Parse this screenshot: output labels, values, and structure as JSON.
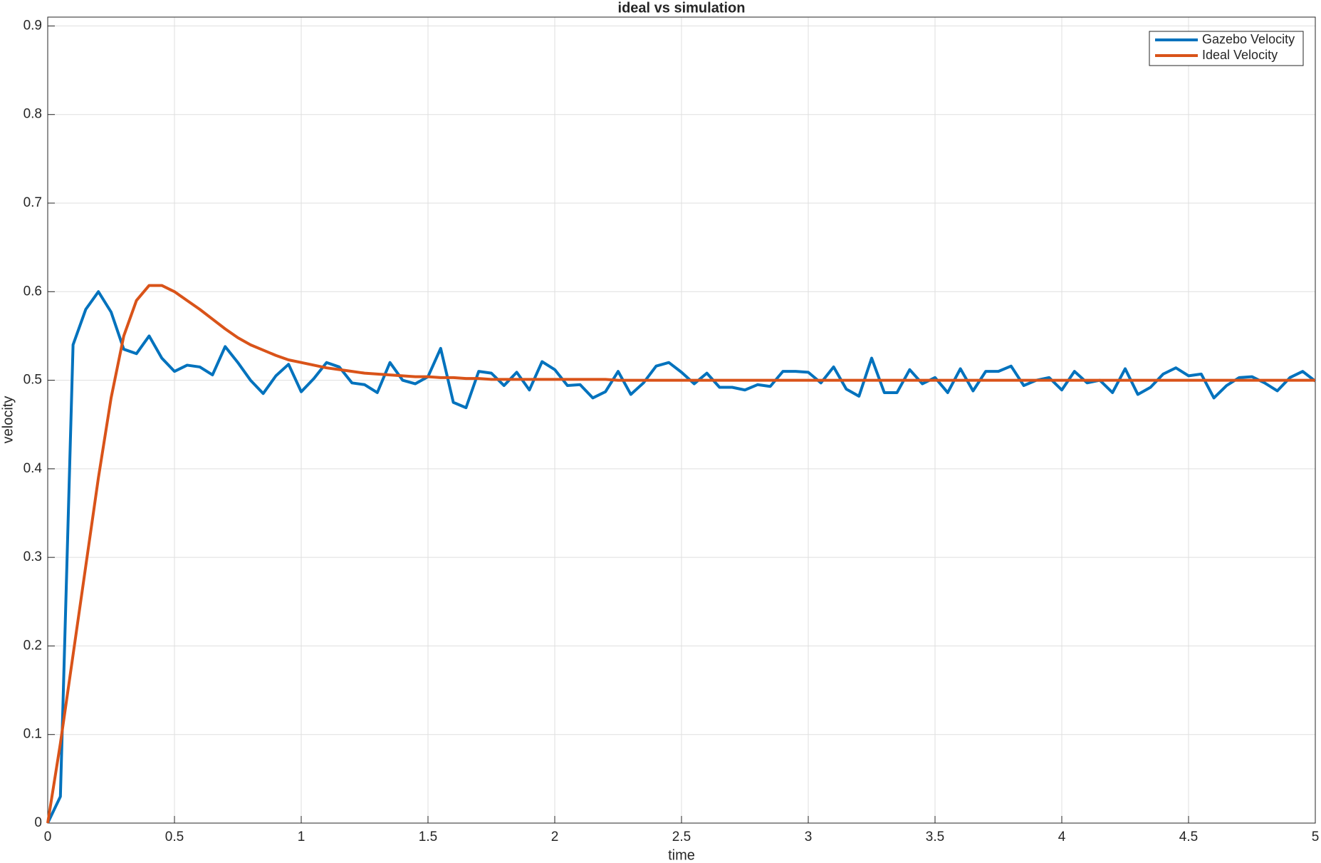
{
  "chart_data": {
    "type": "line",
    "title": "ideal vs simulation",
    "x_label": "time",
    "y_label": "velocity",
    "x": [
      0,
      0.05,
      0.1,
      0.15,
      0.2,
      0.25,
      0.3,
      0.35,
      0.4,
      0.45,
      0.5,
      0.55,
      0.6,
      0.65,
      0.7,
      0.75,
      0.8,
      0.85,
      0.9,
      0.95,
      1,
      1.05,
      1.1,
      1.15,
      1.2,
      1.25,
      1.3,
      1.35,
      1.4,
      1.45,
      1.5,
      1.55,
      1.6,
      1.65,
      1.7,
      1.75,
      1.8,
      1.85,
      1.9,
      1.95,
      2,
      2.05,
      2.1,
      2.15,
      2.2,
      2.25,
      2.3,
      2.35,
      2.4,
      2.45,
      2.5,
      2.55,
      2.6,
      2.65,
      2.7,
      2.75,
      2.8,
      2.85,
      2.9,
      2.95,
      3,
      3.05,
      3.1,
      3.15,
      3.2,
      3.25,
      3.3,
      3.35,
      3.4,
      3.45,
      3.5,
      3.55,
      3.6,
      3.65,
      3.7,
      3.75,
      3.8,
      3.85,
      3.9,
      3.95,
      4,
      4.05,
      4.1,
      4.15,
      4.2,
      4.25,
      4.3,
      4.35,
      4.4,
      4.45,
      4.5,
      4.55,
      4.6,
      4.65,
      4.7,
      4.75,
      4.8,
      4.85,
      4.9,
      4.95,
      5
    ],
    "series": [
      {
        "name": "Gazebo Velocity",
        "color": "#0072bd",
        "values": [
          0,
          0.03,
          0.54,
          0.58,
          0.6,
          0.577,
          0.535,
          0.53,
          0.55,
          0.525,
          0.51,
          0.517,
          0.515,
          0.506,
          0.538,
          0.52,
          0.5,
          0.485,
          0.505,
          0.518,
          0.487,
          0.502,
          0.52,
          0.515,
          0.497,
          0.495,
          0.486,
          0.52,
          0.5,
          0.496,
          0.504,
          0.536,
          0.475,
          0.469,
          0.51,
          0.508,
          0.494,
          0.509,
          0.489,
          0.521,
          0.512,
          0.494,
          0.495,
          0.48,
          0.487,
          0.51,
          0.484,
          0.497,
          0.516,
          0.52,
          0.509,
          0.496,
          0.508,
          0.492,
          0.492,
          0.489,
          0.495,
          0.493,
          0.51,
          0.51,
          0.509,
          0.497,
          0.515,
          0.49,
          0.482,
          0.525,
          0.486,
          0.486,
          0.512,
          0.496,
          0.503,
          0.486,
          0.513,
          0.488,
          0.51,
          0.51,
          0.516,
          0.494,
          0.5,
          0.503,
          0.489,
          0.51,
          0.497,
          0.5,
          0.486,
          0.513,
          0.484,
          0.492,
          0.507,
          0.514,
          0.505,
          0.507,
          0.48,
          0.494,
          0.503,
          0.504,
          0.497,
          0.488,
          0.503,
          0.51,
          0.499
        ]
      },
      {
        "name": "Ideal Velocity",
        "color": "#d95319",
        "values": [
          0,
          0.09,
          0.19,
          0.29,
          0.39,
          0.48,
          0.55,
          0.59,
          0.607,
          0.607,
          0.6,
          0.59,
          0.58,
          0.569,
          0.558,
          0.548,
          0.54,
          0.534,
          0.528,
          0.523,
          0.52,
          0.517,
          0.514,
          0.512,
          0.51,
          0.508,
          0.507,
          0.506,
          0.505,
          0.504,
          0.504,
          0.503,
          0.503,
          0.502,
          0.502,
          0.501,
          0.501,
          0.501,
          0.501,
          0.501,
          0.501,
          0.501,
          0.501,
          0.501,
          0.501,
          0.5,
          0.5,
          0.5,
          0.5,
          0.5,
          0.5,
          0.5,
          0.5,
          0.5,
          0.5,
          0.5,
          0.5,
          0.5,
          0.5,
          0.5,
          0.5,
          0.5,
          0.5,
          0.5,
          0.5,
          0.5,
          0.5,
          0.5,
          0.5,
          0.5,
          0.5,
          0.5,
          0.5,
          0.5,
          0.5,
          0.5,
          0.5,
          0.5,
          0.5,
          0.5,
          0.5,
          0.5,
          0.5,
          0.5,
          0.5,
          0.5,
          0.5,
          0.5,
          0.5,
          0.5,
          0.5,
          0.5,
          0.5,
          0.5,
          0.5,
          0.5,
          0.5,
          0.5,
          0.5,
          0.5,
          0.5
        ]
      }
    ],
    "xlim": [
      0,
      5
    ],
    "xticks": [
      0,
      0.5,
      1,
      1.5,
      2,
      2.5,
      3,
      3.5,
      4,
      4.5,
      5
    ],
    "ylim": [
      0,
      0.91
    ],
    "yticks": [
      0,
      0.1,
      0.2,
      0.3,
      0.4,
      0.5,
      0.6,
      0.7,
      0.8,
      0.9
    ],
    "grid": true,
    "legend": "top-right"
  }
}
